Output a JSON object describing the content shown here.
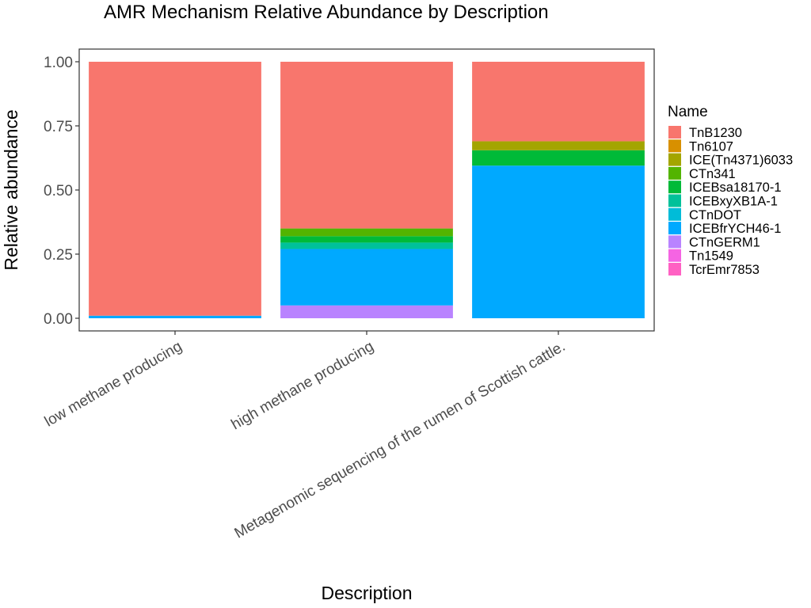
{
  "chart_data": {
    "type": "bar",
    "stacked": true,
    "title": "AMR Mechanism Relative Abundance by Description",
    "xlabel": "Description",
    "ylabel": "Relative abundance",
    "ylim": [
      0,
      1
    ],
    "yticks": [
      "0.00",
      "0.25",
      "0.50",
      "0.75",
      "1.00"
    ],
    "categories": [
      "low methane producing",
      "high methane producing",
      "Metagenomic sequencing of the rumen of Scottish cattle."
    ],
    "legend": {
      "title": "Name",
      "position": "right"
    },
    "grid": false,
    "series": [
      {
        "name": "TcrEmr7853",
        "color": "#FF61C3",
        "values": [
          0,
          0,
          0
        ]
      },
      {
        "name": "Tn1549",
        "color": "#F564E3",
        "values": [
          0,
          0,
          0
        ]
      },
      {
        "name": "CTnGERM1",
        "color": "#B983FF",
        "values": [
          0,
          0.05,
          0
        ]
      },
      {
        "name": "ICEBfrYCH46-1",
        "color": "#00A9FF",
        "values": [
          0.01,
          0.22,
          0.595
        ]
      },
      {
        "name": "CTnDOT",
        "color": "#00BCD8",
        "values": [
          0,
          0,
          0
        ]
      },
      {
        "name": "ICEBxyXB1A-1",
        "color": "#00C19A",
        "values": [
          0,
          0.025,
          0
        ]
      },
      {
        "name": "ICEBsa18170-1",
        "color": "#00BA38",
        "values": [
          0,
          0.025,
          0.06
        ]
      },
      {
        "name": "CTn341",
        "color": "#53B400",
        "values": [
          0,
          0.03,
          0
        ]
      },
      {
        "name": "ICE(Tn4371)6033",
        "color": "#A3A500",
        "values": [
          0,
          0,
          0.035
        ]
      },
      {
        "name": "Tn6107",
        "color": "#D89000",
        "values": [
          0,
          0,
          0
        ]
      },
      {
        "name": "TnB1230",
        "color": "#F8766D",
        "values": [
          0.99,
          0.65,
          0.31
        ]
      }
    ]
  }
}
